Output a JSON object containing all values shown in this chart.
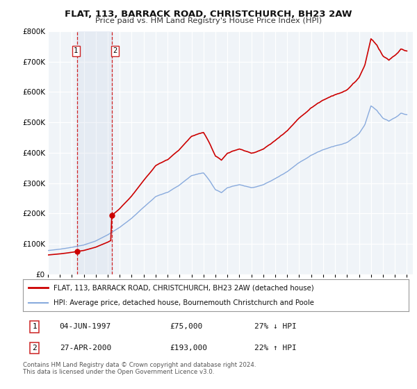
{
  "title": "FLAT, 113, BARRACK ROAD, CHRISTCHURCH, BH23 2AW",
  "subtitle": "Price paid vs. HM Land Registry's House Price Index (HPI)",
  "legend_line1": "FLAT, 113, BARRACK ROAD, CHRISTCHURCH, BH23 2AW (detached house)",
  "legend_line2": "HPI: Average price, detached house, Bournemouth Christchurch and Poole",
  "footnote1": "Contains HM Land Registry data © Crown copyright and database right 2024.",
  "footnote2": "This data is licensed under the Open Government Licence v3.0.",
  "transaction1_date": "04-JUN-1997",
  "transaction1_price": "£75,000",
  "transaction1_hpi": "27% ↓ HPI",
  "transaction2_date": "27-APR-2000",
  "transaction2_price": "£193,000",
  "transaction2_hpi": "22% ↑ HPI",
  "property_color": "#cc0000",
  "hpi_color": "#88aadd",
  "background_color": "#ffffff",
  "plot_bg_color": "#f0f4f8",
  "ylim": [
    0,
    800000
  ],
  "xlim_start": 1995.0,
  "xlim_end": 2025.5,
  "transaction1_x": 1997.42,
  "transaction1_y": 75000,
  "transaction2_x": 2000.32,
  "transaction2_y": 193000,
  "shade1_x": 1997.42,
  "shade2_x": 2000.32
}
